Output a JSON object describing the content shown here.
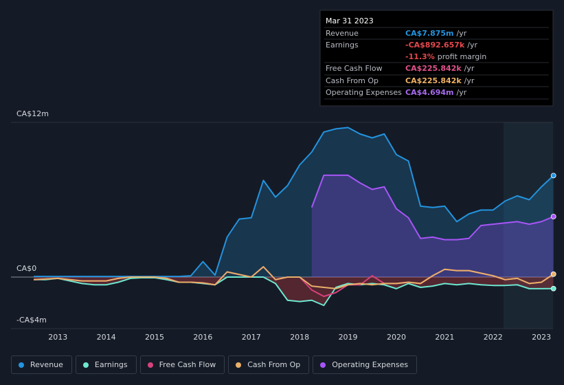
{
  "chart_data": {
    "type": "line",
    "xlim": [
      2012.03,
      2023.24
    ],
    "xticks": [
      2013,
      2014,
      2015,
      2016,
      2017,
      2018,
      2019,
      2020,
      2021,
      2022,
      2023
    ],
    "ylim": [
      -4,
      12
    ],
    "yticks": [
      {
        "value": 12,
        "label": "CA$12m"
      },
      {
        "value": 0,
        "label": "CA$0"
      },
      {
        "value": -4,
        "label": "-CA$4m"
      }
    ],
    "x": [
      2012.5,
      2012.75,
      2013,
      2013.25,
      2013.5,
      2013.75,
      2014,
      2014.25,
      2014.5,
      2014.75,
      2015,
      2015.25,
      2015.5,
      2015.75,
      2016,
      2016.25,
      2016.5,
      2016.75,
      2017,
      2017.25,
      2017.5,
      2017.75,
      2018,
      2018.25,
      2018.5,
      2018.75,
      2019,
      2019.25,
      2019.5,
      2019.75,
      2020,
      2020.25,
      2020.5,
      2020.75,
      2021,
      2021.25,
      2021.5,
      2021.75,
      2022,
      2022.25,
      2022.5,
      2022.75,
      2023,
      2023.25
    ],
    "series": [
      {
        "name": "Revenue",
        "color": "#2394df",
        "fill": true,
        "values": [
          0.05,
          0.05,
          0.05,
          0.05,
          0.05,
          0.05,
          0.05,
          0.05,
          0.05,
          0.05,
          0.05,
          0.05,
          0.05,
          0.1,
          1.2,
          0.15,
          3.1,
          4.5,
          4.6,
          7.5,
          6.2,
          7.1,
          8.7,
          9.7,
          11.25,
          11.5,
          11.6,
          11.1,
          10.8,
          11.1,
          9.5,
          9.0,
          5.5,
          5.4,
          5.5,
          4.3,
          4.9,
          5.2,
          5.2,
          5.9,
          6.3,
          6.0,
          7.0,
          7.875
        ]
      },
      {
        "name": "Earnings",
        "color": "#6ee7d0",
        "fill": true,
        "values": [
          -0.2,
          -0.2,
          -0.1,
          -0.3,
          -0.5,
          -0.6,
          -0.6,
          -0.4,
          -0.1,
          -0.05,
          -0.05,
          -0.2,
          -0.4,
          -0.4,
          -0.5,
          -0.6,
          0,
          0,
          0,
          0,
          -0.5,
          -1.8,
          -1.9,
          -1.8,
          -2.2,
          -0.8,
          -0.5,
          -0.6,
          -0.5,
          -0.6,
          -0.9,
          -0.5,
          -0.8,
          -0.7,
          -0.5,
          -0.6,
          -0.5,
          -0.6,
          -0.65,
          -0.65,
          -0.6,
          -0.9,
          -0.9,
          -0.892657
        ]
      },
      {
        "name": "Free Cash Flow",
        "color": "#d6427c",
        "fill": false,
        "values": [
          -0.2,
          -0.15,
          -0.1,
          -0.2,
          -0.3,
          -0.3,
          -0.3,
          -0.1,
          0,
          0,
          0,
          -0.1,
          -0.4,
          -0.4,
          -0.45,
          -0.6,
          0.4,
          0.2,
          0,
          0.8,
          -0.2,
          0,
          0,
          -1.0,
          -1.5,
          -1.2,
          -0.6,
          -0.6,
          0.1,
          -0.5,
          -0.5,
          -0.4,
          -0.5,
          0.1,
          0.6,
          0.5,
          0.5,
          0.3,
          0.1,
          -0.2,
          -0.1,
          -0.5,
          -0.4,
          0.225842
        ]
      },
      {
        "name": "Cash From Op",
        "color": "#e9b06a",
        "fill": false,
        "values": [
          -0.2,
          -0.15,
          -0.1,
          -0.2,
          -0.3,
          -0.3,
          -0.3,
          -0.1,
          0,
          0,
          0,
          -0.1,
          -0.4,
          -0.4,
          -0.45,
          -0.6,
          0.4,
          0.2,
          0,
          0.8,
          -0.2,
          0,
          0,
          -0.7,
          -0.8,
          -0.9,
          -0.6,
          -0.5,
          -0.6,
          -0.5,
          -0.5,
          -0.4,
          -0.5,
          0.1,
          0.6,
          0.5,
          0.5,
          0.3,
          0.1,
          -0.2,
          -0.1,
          -0.5,
          -0.4,
          0.225842
        ]
      },
      {
        "name": "Operating Expenses",
        "color": "#a855f7",
        "fill": true,
        "values": [
          null,
          null,
          null,
          null,
          null,
          null,
          null,
          null,
          null,
          null,
          null,
          null,
          null,
          null,
          null,
          null,
          null,
          null,
          null,
          null,
          null,
          null,
          null,
          5.4,
          7.9,
          7.9,
          7.9,
          7.3,
          6.8,
          7.0,
          5.3,
          4.6,
          3.0,
          3.1,
          2.9,
          2.9,
          3.0,
          4.0,
          4.1,
          4.2,
          4.3,
          4.1,
          4.3,
          4.694
        ]
      }
    ],
    "tooltip": {
      "date": "Mar 31 2023",
      "rows": [
        {
          "label": "Revenue",
          "value": "CA$7.875m",
          "unit": "/yr",
          "color": "#2394df"
        },
        {
          "label": "Earnings",
          "value": "-CA$892.657k",
          "unit": "/yr",
          "color": "#e5484d"
        },
        {
          "value": "-11.3%",
          "unit": "profit margin",
          "color": "#e5484d"
        },
        {
          "label": "Free Cash Flow",
          "value": "CA$225.842k",
          "unit": "/yr",
          "color": "#e0528c"
        },
        {
          "label": "Cash From Op",
          "value": "CA$225.842k",
          "unit": "/yr",
          "color": "#f0b165"
        },
        {
          "label": "Operating Expenses",
          "value": "CA$4.694m",
          "unit": "/yr",
          "color": "#a66cf0"
        }
      ]
    }
  }
}
